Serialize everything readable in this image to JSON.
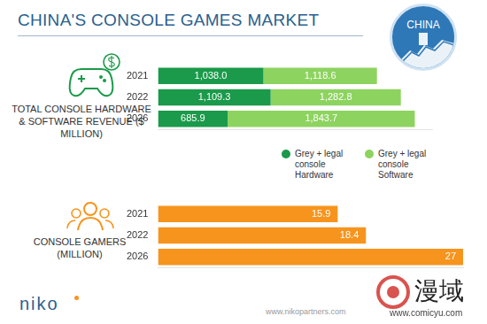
{
  "header": {
    "title": "CHINA'S CONSOLE GAMES MARKET",
    "badge": "CHINA"
  },
  "footer": {
    "logo": "niko",
    "url": "www.nikopartners.com"
  },
  "watermark": {
    "text": "漫域",
    "url": "www.comicyu.com"
  },
  "chart_data": [
    {
      "type": "bar",
      "title": "TOTAL CONSOLE HARDWARE & SOFTWARE REVENUE ($ MILLION)",
      "categories": [
        "2021",
        "2022",
        "2026"
      ],
      "series": [
        {
          "name": "Grey + legal console Hardware",
          "color": "#1a9a4a",
          "values": [
            1038.0,
            1109.3,
            685.9
          ],
          "value_labels": [
            "1,038.0",
            "1,109.3",
            "685.9"
          ]
        },
        {
          "name": "Grey + legal console Software",
          "color": "#8dd35f",
          "values": [
            1118.6,
            1282.8,
            1843.7
          ],
          "value_labels": [
            "1,118.6",
            "1,282.8",
            "1,843.7"
          ]
        }
      ],
      "xlim": [
        0,
        2700
      ],
      "orientation": "horizontal",
      "stacked": true,
      "data_labels": true,
      "tick_labels": "y",
      "grid": false,
      "legend": "bottom"
    },
    {
      "type": "bar",
      "title": "CONSOLE GAMERS (MILLION)",
      "categories": [
        "2021",
        "2022",
        "2026"
      ],
      "values": [
        15.9,
        18.4,
        27
      ],
      "color": "#f7941d",
      "xlim": [
        0,
        27
      ],
      "orientation": "horizontal",
      "data_labels": true,
      "tick_labels": "y",
      "grid": false
    }
  ]
}
